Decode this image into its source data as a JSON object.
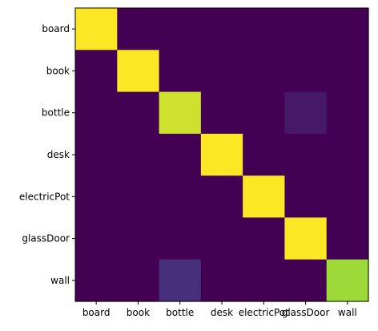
{
  "chart_data": {
    "type": "heatmap",
    "title": "",
    "xlabel": "",
    "ylabel": "",
    "x_categories": [
      "board",
      "book",
      "bottle",
      "desk",
      "electricPot",
      "glassDoor",
      "wall"
    ],
    "y_categories": [
      "board",
      "book",
      "bottle",
      "desk",
      "electricPot",
      "glassDoor",
      "wall"
    ],
    "colormap": "viridis",
    "vmin": 0,
    "vmax": 1,
    "values": [
      [
        1.0,
        0.0,
        0.0,
        0.0,
        0.0,
        0.0,
        0.0
      ],
      [
        0.0,
        1.0,
        0.0,
        0.0,
        0.0,
        0.0,
        0.0
      ],
      [
        0.0,
        0.0,
        0.93,
        0.0,
        0.0,
        0.07,
        0.0
      ],
      [
        0.0,
        0.0,
        0.0,
        1.0,
        0.0,
        0.0,
        0.0
      ],
      [
        0.0,
        0.0,
        0.0,
        0.0,
        1.0,
        0.0,
        0.0
      ],
      [
        0.0,
        0.0,
        0.0,
        0.0,
        0.0,
        1.0,
        0.0
      ],
      [
        0.0,
        0.0,
        0.14,
        0.0,
        0.0,
        0.0,
        0.86
      ]
    ]
  }
}
